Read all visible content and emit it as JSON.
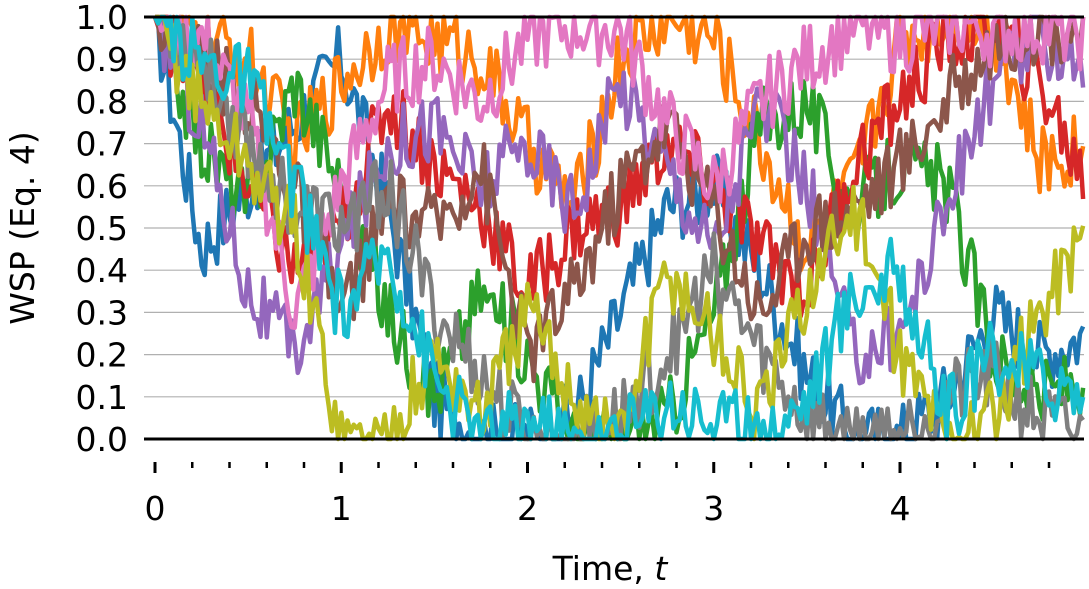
{
  "chart_data": {
    "type": "line",
    "title": "",
    "xlabel": "Time, ",
    "xlabel_italic": "t",
    "ylabel": "WSP (Eq. 4)",
    "xlim": [
      0,
      5
    ],
    "ylim": [
      0.0,
      1.0
    ],
    "x_ticks": [
      0,
      1,
      2,
      3,
      4
    ],
    "x_tick_labels": [
      "0",
      "1",
      "2",
      "3",
      "4"
    ],
    "x_minor_tick_step": 0.2,
    "y_ticks": [
      0.0,
      0.1,
      0.2,
      0.3,
      0.4,
      0.5,
      0.6,
      0.7,
      0.8,
      0.9,
      1.0
    ],
    "y_tick_labels": [
      "0.0",
      "0.1",
      "0.2",
      "0.3",
      "0.4",
      "0.5",
      "0.6",
      "0.7",
      "0.8",
      "0.9",
      "1.0"
    ],
    "grid": "horizontal",
    "legend": "none",
    "series_colors": [
      "#1f77b4",
      "#ff7f0e",
      "#2ca02c",
      "#d62728",
      "#9467bd",
      "#8c564b",
      "#e377c2",
      "#7f7f7f",
      "#bcbd22",
      "#17becf"
    ],
    "series": [
      {
        "x": [
          0,
          0.25,
          0.5,
          0.75,
          1,
          1.25,
          1.5,
          1.75,
          2,
          2.25,
          2.5,
          2.75,
          3,
          3.25,
          3.5,
          3.75,
          4,
          4.25,
          4.5,
          4.75,
          5
        ],
        "values": [
          1,
          0.45,
          0.6,
          0.75,
          0.9,
          0.55,
          0.1,
          0.0,
          0.0,
          0.05,
          0.3,
          0.55,
          0.6,
          0.4,
          0.15,
          0.0,
          0.0,
          0.1,
          0.3,
          0.2,
          0.25
        ]
      },
      {
        "x": [
          0,
          0.25,
          0.5,
          0.75,
          1,
          1.25,
          1.5,
          1.75,
          2,
          2.25,
          2.5,
          2.75,
          3,
          3.25,
          3.5,
          3.75,
          4,
          4.25,
          4.5,
          4.75,
          5
        ],
        "values": [
          1,
          0.95,
          0.9,
          0.7,
          0.85,
          0.98,
          0.95,
          0.9,
          0.7,
          0.55,
          0.9,
          1.0,
          0.95,
          0.7,
          0.45,
          0.6,
          0.95,
          1.0,
          0.98,
          0.65,
          0.7
        ]
      },
      {
        "x": [
          0,
          0.25,
          0.5,
          0.75,
          1,
          1.25,
          1.5,
          1.75,
          2,
          2.25,
          2.5,
          2.75,
          3,
          3.25,
          3.5,
          3.75,
          4,
          4.25,
          4.5,
          4.75,
          5
        ],
        "values": [
          1,
          0.7,
          0.55,
          0.85,
          0.6,
          0.3,
          0.1,
          0.35,
          0.2,
          0.0,
          0.0,
          0.05,
          0.3,
          0.75,
          0.8,
          0.55,
          0.65,
          0.6,
          0.2,
          0.1,
          0.15
        ]
      },
      {
        "x": [
          0,
          0.25,
          0.5,
          0.75,
          1,
          1.25,
          1.5,
          1.75,
          2,
          2.25,
          2.5,
          2.75,
          3,
          3.25,
          3.5,
          3.75,
          4,
          4.25,
          4.5,
          4.75,
          5
        ],
        "values": [
          1,
          0.85,
          0.6,
          0.4,
          0.5,
          0.8,
          0.65,
          0.55,
          0.35,
          0.5,
          0.55,
          0.7,
          0.6,
          0.45,
          0.35,
          0.65,
          0.8,
          0.95,
          0.98,
          0.85,
          0.6
        ]
      },
      {
        "x": [
          0,
          0.25,
          0.5,
          0.75,
          1,
          1.25,
          1.5,
          1.75,
          2,
          2.25,
          2.5,
          2.75,
          3,
          3.25,
          3.5,
          3.75,
          4,
          4.25,
          4.5,
          4.75,
          5
        ],
        "values": [
          1,
          0.75,
          0.35,
          0.2,
          0.45,
          0.7,
          0.75,
          0.6,
          0.7,
          0.55,
          0.85,
          0.65,
          0.45,
          0.8,
          0.6,
          0.2,
          0.25,
          0.55,
          0.85,
          0.95,
          0.9
        ]
      },
      {
        "x": [
          0,
          0.25,
          0.5,
          0.75,
          1,
          1.25,
          1.5,
          1.75,
          2,
          2.25,
          2.5,
          2.75,
          3,
          3.25,
          3.5,
          3.75,
          4,
          4.25,
          4.5,
          4.75,
          5
        ],
        "values": [
          1,
          0.9,
          0.8,
          0.6,
          0.3,
          0.55,
          0.5,
          0.65,
          0.2,
          0.35,
          0.6,
          0.75,
          0.55,
          0.3,
          0.5,
          0.55,
          0.65,
          0.8,
          0.95,
          0.98,
          0.97
        ]
      },
      {
        "x": [
          0,
          0.25,
          0.5,
          0.75,
          1,
          1.25,
          1.5,
          1.75,
          2,
          2.25,
          2.5,
          2.75,
          3,
          3.25,
          3.5,
          3.75,
          4,
          4.25,
          4.5,
          4.75,
          5
        ],
        "values": [
          1,
          0.95,
          0.75,
          0.3,
          0.6,
          0.85,
          0.9,
          0.8,
          0.95,
          0.98,
          0.97,
          0.75,
          0.6,
          0.8,
          0.9,
          0.98,
          0.95,
          0.99,
          0.97,
          0.98,
          0.96
        ]
      },
      {
        "x": [
          0,
          0.25,
          0.5,
          0.75,
          1,
          1.25,
          1.5,
          1.75,
          2,
          2.25,
          2.5,
          2.75,
          3,
          3.25,
          3.5,
          3.75,
          4,
          4.25,
          4.5,
          4.75,
          5
        ],
        "values": [
          1,
          0.9,
          0.7,
          0.55,
          0.5,
          0.6,
          0.3,
          0.15,
          0.0,
          0.0,
          0.05,
          0.2,
          0.4,
          0.2,
          0.05,
          0.0,
          0.02,
          0.1,
          0.15,
          0.05,
          0.0
        ]
      },
      {
        "x": [
          0,
          0.25,
          0.5,
          0.75,
          1,
          1.25,
          1.5,
          1.75,
          2,
          2.25,
          2.5,
          2.75,
          3,
          3.25,
          3.5,
          3.75,
          4,
          4.25,
          4.5,
          4.75,
          5
        ],
        "values": [
          1,
          0.8,
          0.65,
          0.5,
          0.0,
          0.0,
          0.2,
          0.05,
          0.3,
          0.1,
          0.0,
          0.4,
          0.25,
          0.05,
          0.35,
          0.55,
          0.2,
          0.0,
          0.05,
          0.3,
          0.5
        ]
      },
      {
        "x": [
          0,
          0.25,
          0.5,
          0.75,
          1,
          1.25,
          1.5,
          1.75,
          2,
          2.25,
          2.5,
          2.75,
          3,
          3.25,
          3.5,
          3.75,
          4,
          4.25,
          4.5,
          4.75,
          5
        ],
        "values": [
          1,
          0.9,
          0.85,
          0.6,
          0.3,
          0.45,
          0.15,
          0.0,
          0.05,
          0.0,
          0.0,
          0.1,
          0.05,
          0.0,
          0.1,
          0.35,
          0.4,
          0.05,
          0.2,
          0.15,
          0.1
        ]
      }
    ]
  }
}
